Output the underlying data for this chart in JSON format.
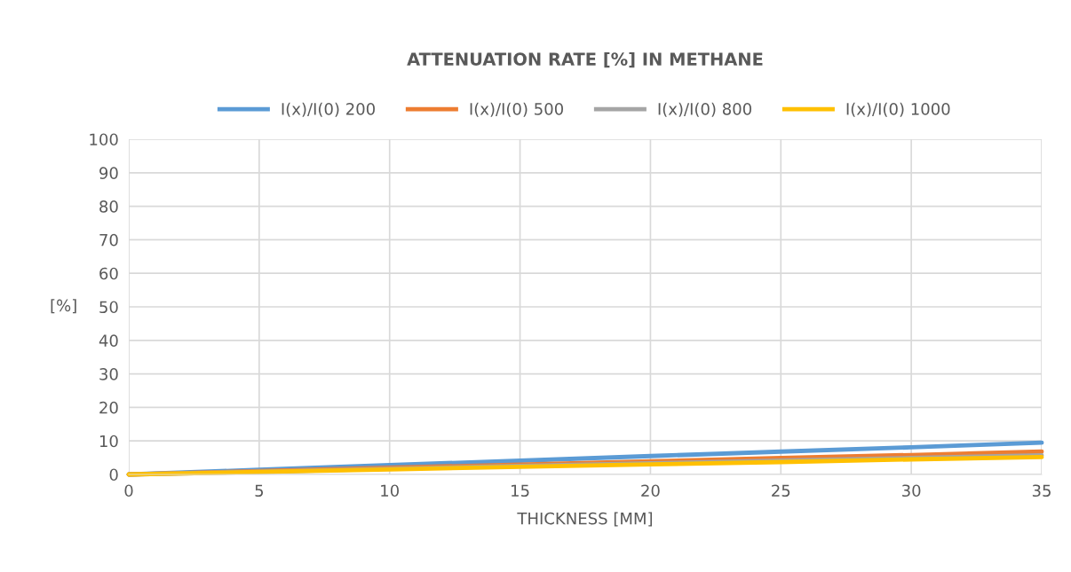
{
  "chart_data": {
    "type": "line",
    "title": "ATTENUATION RATE [%] IN METHANE",
    "xlabel": "THICKNESS [MM]",
    "ylabel": "[%]",
    "x": [
      0,
      5,
      10,
      15,
      20,
      25,
      30,
      35
    ],
    "series": [
      {
        "name": "I(x)/I(0) 200",
        "color": "#5b9bd5",
        "values": [
          0,
          1.4,
          2.8,
          4.1,
          5.5,
          6.8,
          8.1,
          9.5
        ]
      },
      {
        "name": "I(x)/I(0) 500",
        "color": "#ed7d31",
        "values": [
          0,
          1.0,
          2.0,
          2.9,
          3.9,
          4.9,
          5.8,
          6.8
        ]
      },
      {
        "name": "I(x)/I(0) 800",
        "color": "#a5a5a5",
        "values": [
          0,
          0.8,
          1.7,
          2.5,
          3.3,
          4.1,
          4.9,
          5.7
        ]
      },
      {
        "name": "I(x)/I(0) 1000",
        "color": "#ffc000",
        "values": [
          0,
          0.75,
          1.5,
          2.3,
          3.0,
          3.7,
          4.5,
          5.2
        ]
      }
    ],
    "xlim": [
      0,
      35
    ],
    "xticks": [
      0,
      5,
      10,
      15,
      20,
      25,
      30,
      35
    ],
    "ylim": [
      0,
      100
    ],
    "yticks": [
      0,
      10,
      20,
      30,
      40,
      50,
      60,
      70,
      80,
      90,
      100
    ],
    "grid": true,
    "legend": "top",
    "marker": "none",
    "line_style": "solid"
  }
}
